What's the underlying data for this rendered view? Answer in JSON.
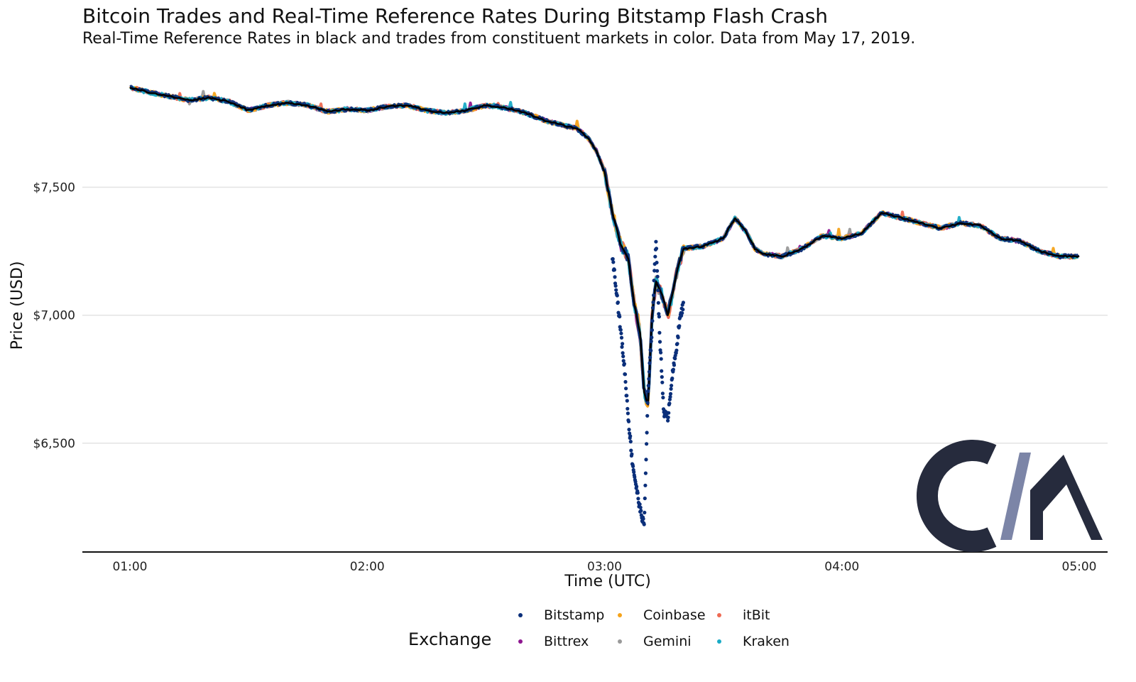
{
  "chart_data": {
    "type": "scatter",
    "title": "Bitcoin Trades and Real-Time Reference Rates During Bitstamp Flash Crash",
    "subtitle": "Real-Time Reference Rates in black and trades from constituent markets in color. Data from May 17, 2019.",
    "xlabel": "Time (UTC)",
    "ylabel": "Price (USD)",
    "xlim": [
      "01:00",
      "05:00"
    ],
    "ylim": [
      6150,
      7940
    ],
    "x_ticks": [
      "01:00",
      "02:00",
      "03:00",
      "04:00",
      "05:00"
    ],
    "y_ticks": [
      {
        "value": 6500,
        "label": "$6,500"
      },
      {
        "value": 7000,
        "label": "$7,000"
      },
      {
        "value": 7500,
        "label": "$7,500"
      }
    ],
    "grid": "horizontal",
    "legend_placement": "bottom",
    "legend_title": "Exchange",
    "reference_rate_color": "#000000",
    "series": [
      {
        "name": "Bitstamp",
        "color": "#0b2f7a"
      },
      {
        "name": "Bittrex",
        "color": "#8e1790"
      },
      {
        "name": "Coinbase",
        "color": "#f5a31a"
      },
      {
        "name": "Gemini",
        "color": "#9a9a9a"
      },
      {
        "name": "itBit",
        "color": "#ee6a53"
      },
      {
        "name": "Kraken",
        "color": "#1aabc6"
      }
    ],
    "reference_rate": [
      [
        "01:00",
        7890
      ],
      [
        "01:05",
        7870
      ],
      [
        "01:10",
        7855
      ],
      [
        "01:15",
        7840
      ],
      [
        "01:20",
        7850
      ],
      [
        "01:25",
        7835
      ],
      [
        "01:30",
        7800
      ],
      [
        "01:35",
        7820
      ],
      [
        "01:40",
        7830
      ],
      [
        "01:45",
        7820
      ],
      [
        "01:50",
        7795
      ],
      [
        "01:55",
        7805
      ],
      [
        "02:00",
        7800
      ],
      [
        "02:05",
        7815
      ],
      [
        "02:10",
        7820
      ],
      [
        "02:15",
        7800
      ],
      [
        "02:20",
        7790
      ],
      [
        "02:25",
        7800
      ],
      [
        "02:30",
        7820
      ],
      [
        "02:35",
        7810
      ],
      [
        "02:40",
        7790
      ],
      [
        "02:45",
        7760
      ],
      [
        "02:50",
        7740
      ],
      [
        "02:53",
        7730
      ],
      [
        "02:56",
        7690
      ],
      [
        "02:58",
        7640
      ],
      [
        "03:00",
        7560
      ],
      [
        "03:02",
        7400
      ],
      [
        "03:04",
        7280
      ],
      [
        "03:05",
        7250
      ],
      [
        "03:06",
        7220
      ],
      [
        "03:07",
        7100
      ],
      [
        "03:08",
        7000
      ],
      [
        "03:09",
        6930
      ],
      [
        "03:10",
        6700
      ],
      [
        "03:11",
        6650
      ],
      [
        "03:12",
        7000
      ],
      [
        "03:13",
        7130
      ],
      [
        "03:14",
        7100
      ],
      [
        "03:15",
        7060
      ],
      [
        "03:16",
        7000
      ],
      [
        "03:17",
        7070
      ],
      [
        "03:18",
        7150
      ],
      [
        "03:19",
        7210
      ],
      [
        "03:20",
        7260
      ],
      [
        "03:25",
        7270
      ],
      [
        "03:30",
        7300
      ],
      [
        "03:33",
        7380
      ],
      [
        "03:36",
        7320
      ],
      [
        "03:38",
        7260
      ],
      [
        "03:40",
        7240
      ],
      [
        "03:45",
        7230
      ],
      [
        "03:50",
        7260
      ],
      [
        "03:55",
        7310
      ],
      [
        "04:00",
        7300
      ],
      [
        "04:05",
        7320
      ],
      [
        "04:10",
        7400
      ],
      [
        "04:15",
        7380
      ],
      [
        "04:20",
        7360
      ],
      [
        "04:25",
        7340
      ],
      [
        "04:30",
        7360
      ],
      [
        "04:35",
        7350
      ],
      [
        "04:40",
        7300
      ],
      [
        "04:45",
        7290
      ],
      [
        "04:50",
        7250
      ],
      [
        "04:55",
        7230
      ],
      [
        "05:00",
        7230
      ]
    ],
    "bitstamp_crash_trades": [
      [
        "03:02",
        7230
      ],
      [
        "03:03",
        7100
      ],
      [
        "03:04",
        6950
      ],
      [
        "03:05",
        6800
      ],
      [
        "03:06",
        6600
      ],
      [
        "03:07",
        6430
      ],
      [
        "03:08",
        6330
      ],
      [
        "03:09",
        6240
      ],
      [
        "03:10",
        6180
      ],
      [
        "03:11",
        6700
      ],
      [
        "03:12",
        6950
      ],
      [
        "03:13",
        7300
      ],
      [
        "03:14",
        6900
      ],
      [
        "03:15",
        6620
      ],
      [
        "03:16",
        6600
      ],
      [
        "03:17",
        6750
      ],
      [
        "03:18",
        6850
      ],
      [
        "03:19",
        6980
      ],
      [
        "03:20",
        7050
      ]
    ]
  }
}
